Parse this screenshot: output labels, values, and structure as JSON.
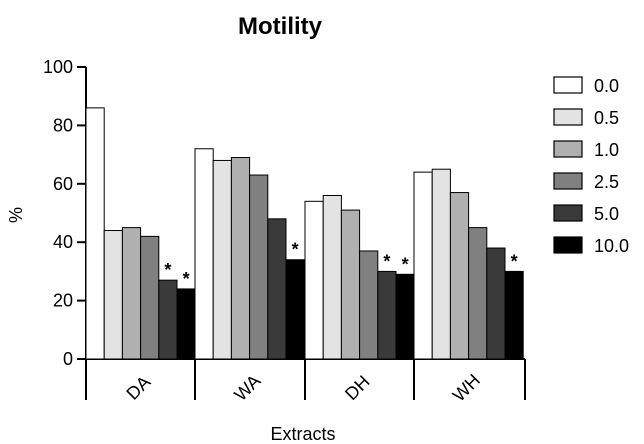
{
  "chart_data": {
    "type": "bar",
    "title": "Motility",
    "xlabel": "Extracts",
    "ylabel": "%",
    "ylim": [
      0,
      100
    ],
    "yticks": [
      "0",
      "20",
      "40",
      "60",
      "80",
      "100"
    ],
    "categories": [
      "DA",
      "WA",
      "DH",
      "WH"
    ],
    "legend_position": "right",
    "grid": false,
    "significance_marker": "*",
    "series": [
      {
        "name": "0.0",
        "color": "#ffffff",
        "values": [
          86,
          72,
          54,
          64
        ],
        "significant": [
          false,
          false,
          false,
          false
        ]
      },
      {
        "name": "0.5",
        "color": "#e3e3e3",
        "values": [
          44,
          68,
          56,
          65
        ],
        "significant": [
          false,
          false,
          false,
          false
        ]
      },
      {
        "name": "1.0",
        "color": "#b0b0b0",
        "values": [
          45,
          69,
          51,
          57
        ],
        "significant": [
          false,
          false,
          false,
          false
        ]
      },
      {
        "name": "2.5",
        "color": "#808080",
        "values": [
          42,
          63,
          37,
          45
        ],
        "significant": [
          false,
          false,
          false,
          false
        ]
      },
      {
        "name": "5.0",
        "color": "#3a3a3a",
        "values": [
          27,
          48,
          30,
          38
        ],
        "significant": [
          true,
          false,
          true,
          false
        ]
      },
      {
        "name": "10.0",
        "color": "#000000",
        "values": [
          24,
          34,
          29,
          30
        ],
        "significant": [
          true,
          true,
          true,
          true
        ]
      }
    ]
  }
}
